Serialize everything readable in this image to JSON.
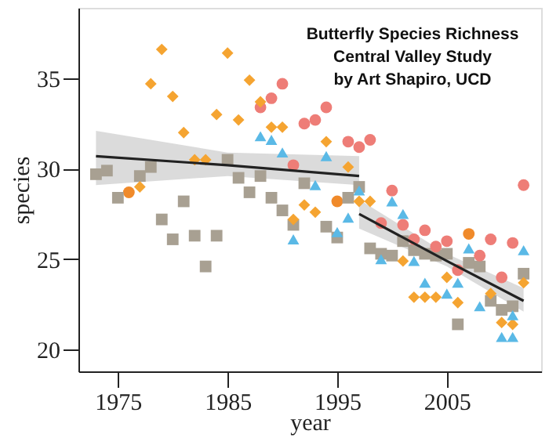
{
  "chart_data": {
    "type": "scatter",
    "title": "Butterfly Species Richness",
    "subtitle": "Central Valley Study\nby Art Shapiro, UCD",
    "xlabel": "year",
    "ylabel": "species",
    "xlim": [
      1971.4,
      2013.6
    ],
    "ylim": [
      18.8,
      38.9
    ],
    "xticks": [
      1975,
      1985,
      1995,
      2005
    ],
    "yticks": [
      20,
      25,
      30,
      35
    ],
    "grid": false,
    "series": [
      {
        "color": "#f5a431",
        "marker": "diamond",
        "x": [
          1979,
          1985,
          1978,
          1980,
          1987,
          1984,
          1981,
          1986,
          1988,
          1989,
          1990,
          1982,
          1983,
          1977,
          1991,
          1994,
          1996,
          1992,
          1993,
          1997,
          1998,
          2001,
          2002,
          2003,
          2004,
          2005,
          2006,
          2009,
          2010,
          2011,
          2012
        ],
        "values": [
          36.6,
          36.4,
          34.7,
          34.0,
          34.9,
          33.0,
          32.0,
          32.7,
          33.7,
          32.3,
          32.3,
          30.5,
          30.5,
          29.0,
          27.2,
          31.5,
          30.1,
          28.0,
          27.6,
          28.2,
          28.2,
          24.9,
          22.9,
          22.9,
          22.9,
          24.0,
          22.6,
          23.1,
          21.5,
          21.4,
          23.7
        ]
      },
      {
        "color": "#ee7d77",
        "marker": "circle",
        "x": [
          1990,
          1989,
          1988,
          1991,
          1994,
          1993,
          1992,
          1996,
          1997,
          1998,
          2012,
          2000,
          1999,
          2001,
          2002,
          2003,
          2004,
          2005,
          2006,
          2008,
          2009,
          2010,
          2011
        ],
        "values": [
          34.7,
          33.9,
          33.4,
          30.2,
          33.4,
          32.7,
          32.5,
          31.5,
          31.2,
          31.6,
          29.1,
          28.8,
          27.0,
          26.9,
          26.1,
          26.6,
          25.7,
          26.0,
          24.4,
          25.2,
          26.1,
          24.0,
          25.9
        ]
      },
      {
        "color": "#5ab9e6",
        "marker": "triangle",
        "x": [
          1988,
          1989,
          1990,
          1991,
          1994,
          1993,
          1997,
          2000,
          2001,
          1995,
          1996,
          1999,
          2002,
          2003,
          2005,
          2006,
          2007,
          2008,
          2010,
          2011,
          2011,
          2012
        ],
        "values": [
          31.8,
          31.6,
          30.9,
          26.1,
          30.7,
          29.1,
          28.8,
          28.2,
          27.5,
          26.5,
          27.3,
          25.0,
          24.9,
          23.7,
          23.1,
          23.7,
          25.6,
          22.4,
          20.7,
          20.7,
          21.9,
          25.5
        ]
      },
      {
        "color": "#a8a092",
        "marker": "square",
        "x": [
          1973,
          1974,
          1975,
          1977,
          1978,
          1979,
          1980,
          1981,
          1982,
          1983,
          1984,
          1985,
          1986,
          1987,
          1988,
          1989,
          1990,
          1991,
          1992,
          1994,
          1995,
          1996,
          1997,
          1998,
          1999,
          2000,
          2001,
          2002,
          2003,
          2004,
          2005,
          2006,
          2007,
          2008,
          2009,
          2010,
          2011,
          2012
        ],
        "values": [
          29.7,
          29.9,
          28.4,
          29.6,
          30.1,
          27.2,
          26.1,
          28.2,
          26.3,
          24.6,
          26.3,
          30.5,
          29.5,
          28.7,
          29.6,
          28.4,
          27.7,
          26.9,
          29.2,
          26.8,
          26.2,
          28.4,
          29.0,
          25.6,
          25.3,
          25.2,
          26.0,
          25.5,
          25.3,
          25.2,
          25.3,
          21.4,
          24.8,
          24.6,
          22.7,
          22.2,
          22.4,
          24.2
        ]
      },
      {
        "color": "#f08a2a",
        "marker": "circle",
        "x": [
          1976,
          1995,
          2007
        ],
        "values": [
          28.7,
          28.2,
          26.4
        ]
      },
      {
        "type": "line",
        "color": "#222222",
        "marker": "none",
        "x": [
          1973,
          1985,
          1997
        ],
        "values": [
          30.7,
          30.2,
          29.6
        ],
        "lower": [
          29.1,
          29.6,
          29.1
        ],
        "upper": [
          32.1,
          30.9,
          30.7
        ]
      },
      {
        "type": "line",
        "color": "#222222",
        "marker": "none",
        "x": [
          1997,
          2005,
          2012
        ],
        "values": [
          27.5,
          24.9,
          22.7
        ],
        "lower": [
          26.7,
          24.6,
          22.1
        ],
        "upper": [
          28.3,
          25.3,
          23.4
        ]
      }
    ]
  }
}
